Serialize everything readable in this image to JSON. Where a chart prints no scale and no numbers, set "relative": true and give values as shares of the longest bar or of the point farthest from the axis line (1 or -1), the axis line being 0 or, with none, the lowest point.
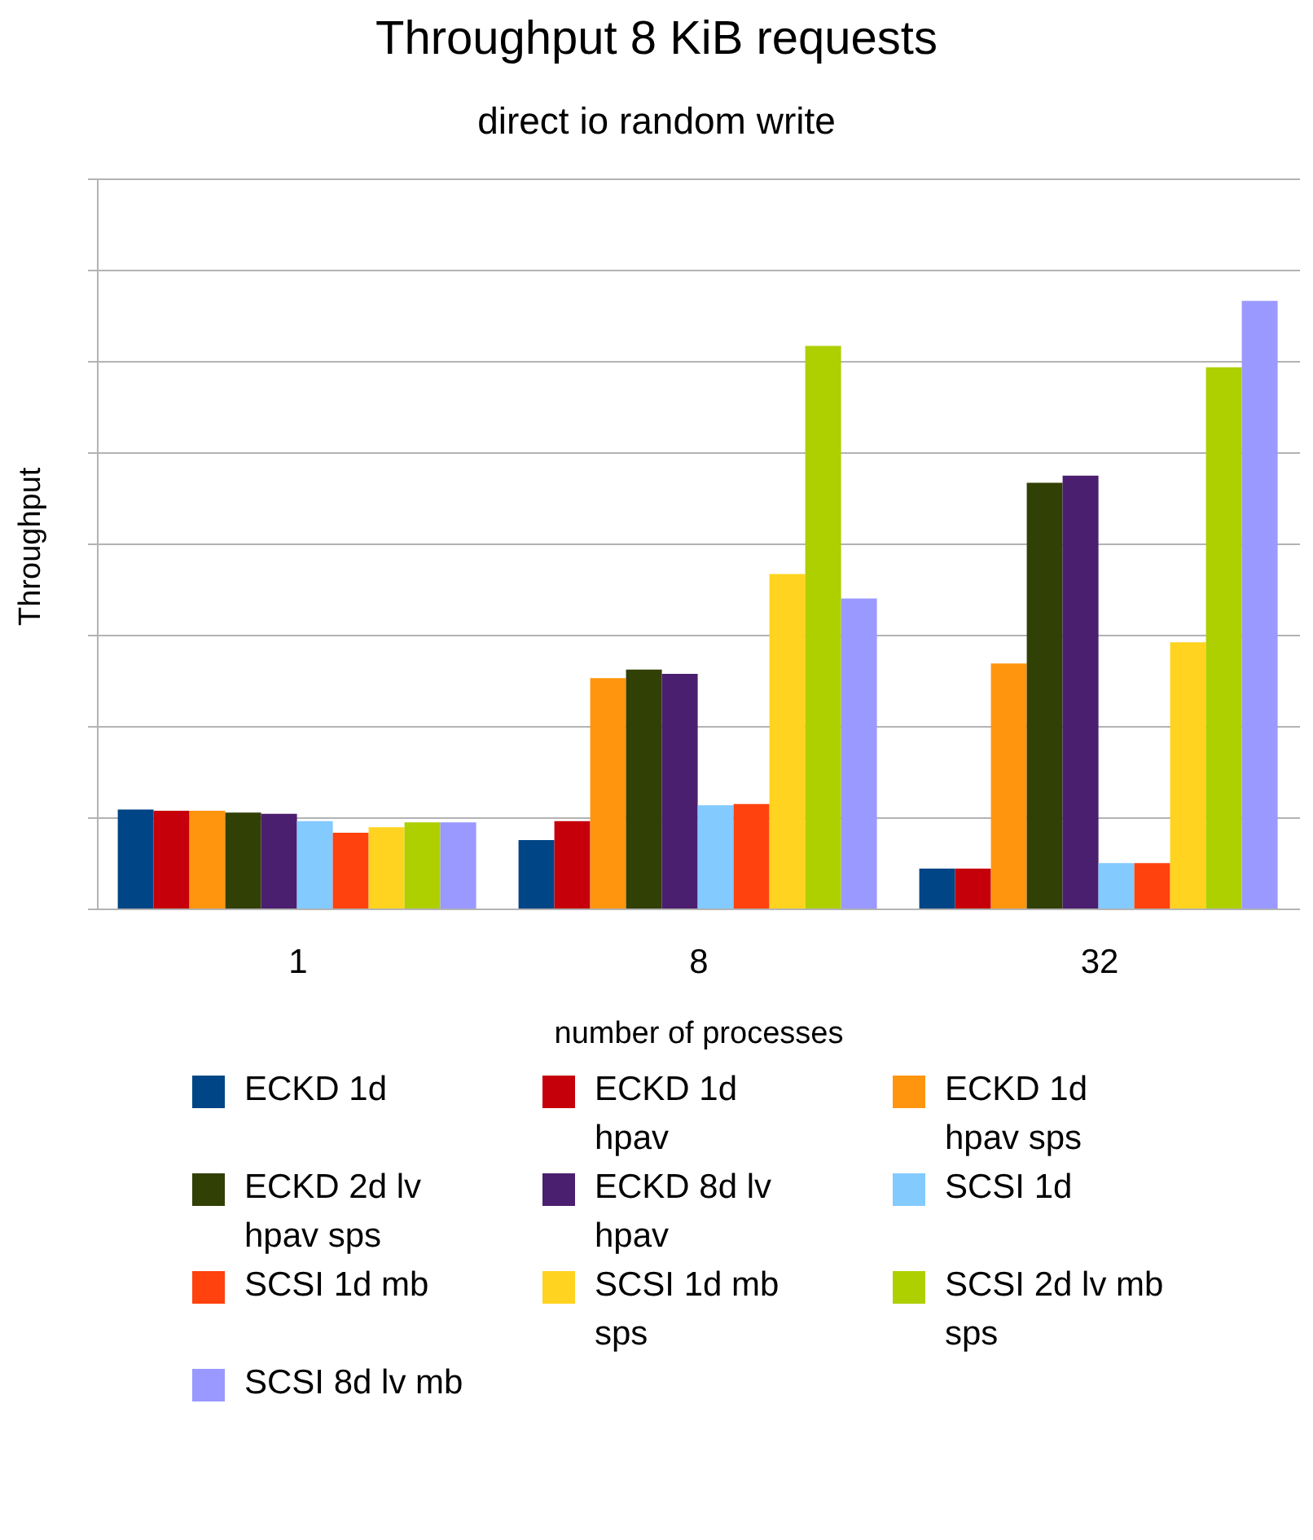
{
  "chart_data": {
    "type": "bar",
    "title": "Throughput 8 KiB requests",
    "subtitle": "direct io random write",
    "xlabel": "number of processes",
    "ylabel": "Throughput",
    "relative": true,
    "grid": "y",
    "legend": "bottom",
    "categories": [
      "1",
      "8",
      "32"
    ],
    "series": [
      {
        "name": "ECKD 1d",
        "color": "#004586",
        "values": [
          0.164,
          0.114,
          0.067
        ]
      },
      {
        "name": "ECKD 1d hpav",
        "color": "#c5000b",
        "values": [
          0.162,
          0.145,
          0.067
        ]
      },
      {
        "name": "ECKD 1d hpav sps",
        "color": "#ff950e",
        "values": [
          0.162,
          0.38,
          0.404
        ]
      },
      {
        "name": "ECKD 2d lv hpav sps",
        "color": "#314004",
        "values": [
          0.159,
          0.394,
          0.701
        ]
      },
      {
        "name": "ECKD 8d lv hpav",
        "color": "#4b1f6f",
        "values": [
          0.157,
          0.387,
          0.713
        ]
      },
      {
        "name": "SCSI 1d",
        "color": "#83caff",
        "values": [
          0.145,
          0.171,
          0.076
        ]
      },
      {
        "name": "SCSI 1d mb",
        "color": "#ff420e",
        "values": [
          0.126,
          0.173,
          0.076
        ]
      },
      {
        "name": "SCSI 1d mb sps",
        "color": "#ffd320",
        "values": [
          0.135,
          0.551,
          0.439
        ]
      },
      {
        "name": "SCSI 2d lv mb sps",
        "color": "#aecf00",
        "values": [
          0.143,
          0.926,
          0.891
        ]
      },
      {
        "name": "SCSI 8d lv mb",
        "color": "#9999ff",
        "values": [
          0.143,
          0.511,
          1
        ]
      }
    ]
  }
}
